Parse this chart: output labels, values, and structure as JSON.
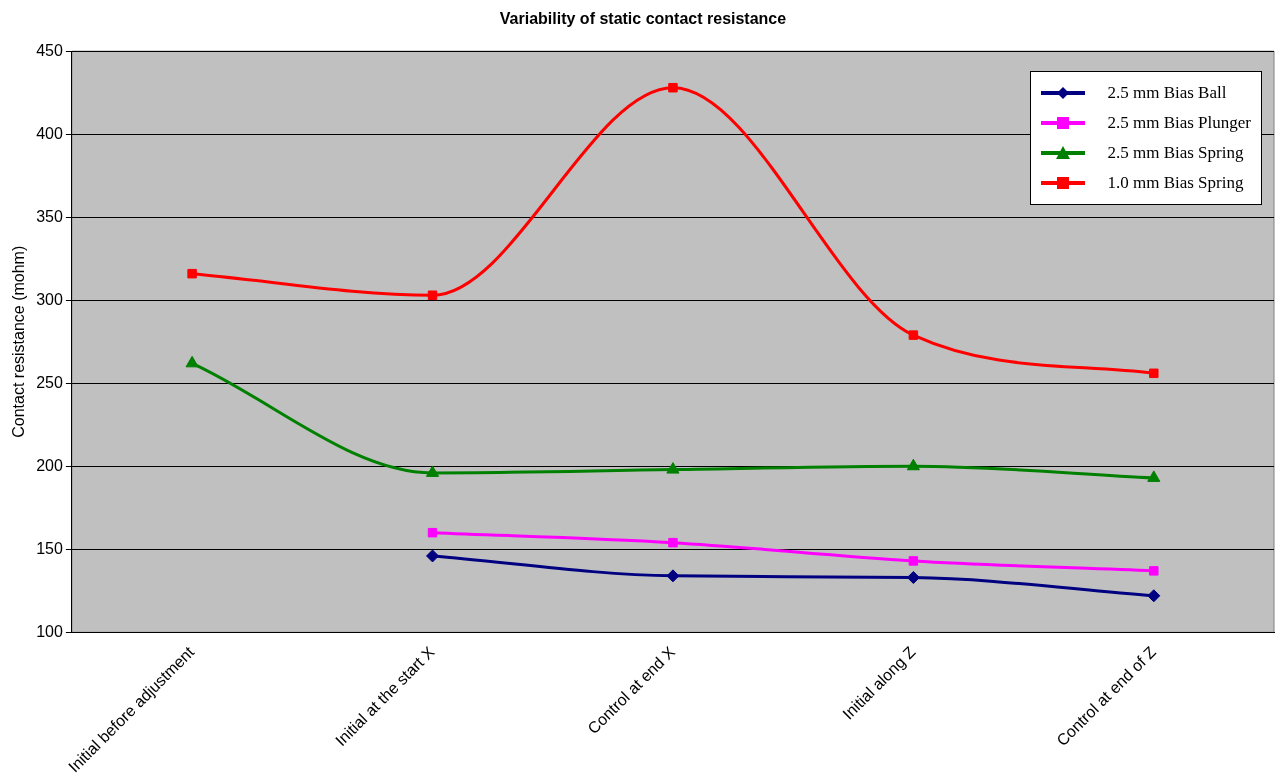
{
  "chart_data": {
    "type": "line",
    "title": "Variability of static contact resistance",
    "ylabel": "Contact resistance (mohm)",
    "categories": [
      "Initial before adjustment",
      "Initial at the start X",
      "Control at end X",
      "Initial along Z",
      "Control at end of Z"
    ],
    "series": [
      {
        "name": "2.5 mm Bias Ball",
        "color": "#000080",
        "marker": "diamond",
        "values": [
          null,
          146,
          134,
          133,
          122
        ]
      },
      {
        "name": "2.5 mm Bias Plunger",
        "color": "#ff00ff",
        "marker": "square",
        "values": [
          null,
          160,
          154,
          143,
          137
        ]
      },
      {
        "name": "2.5 mm Bias Spring",
        "color": "#008000",
        "marker": "triangle",
        "values": [
          262,
          196,
          198,
          200,
          193
        ]
      },
      {
        "name": "1.0 mm Bias Spring",
        "color": "#ff0000",
        "marker": "square",
        "values": [
          316,
          303,
          428,
          279,
          256
        ]
      }
    ],
    "ylim": [
      100,
      450
    ],
    "yticks": [
      100,
      150,
      200,
      250,
      300,
      350,
      400,
      450
    ],
    "grid": "y",
    "legend": "top right"
  }
}
